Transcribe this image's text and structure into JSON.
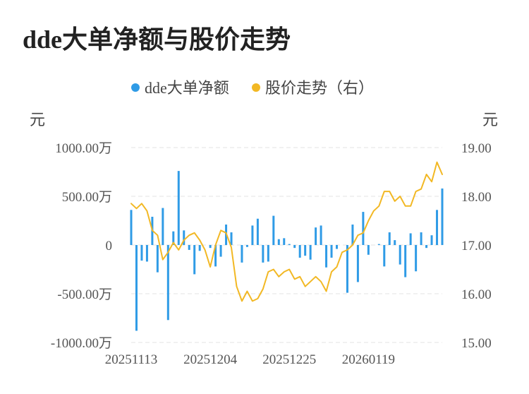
{
  "chart_data": {
    "type": "bar+line",
    "title": "dde大单净额与股价走势",
    "legend": [
      {
        "name": "dde大单净额",
        "color": "#2f9be6",
        "marker": "dot"
      },
      {
        "name": "股价走势（右）",
        "color": "#f2b824",
        "marker": "dot"
      }
    ],
    "legend_placement": "top-center",
    "y_left": {
      "unit": "元",
      "ylim": [
        -1000,
        1000
      ],
      "ticks": [
        "1000.00万",
        "500.00万",
        "0",
        "-500.00万",
        "-1000.00万"
      ],
      "tick_values": [
        1000,
        500,
        0,
        -500,
        -1000
      ]
    },
    "y_right": {
      "unit": "元",
      "ylim": [
        15,
        19
      ],
      "ticks": [
        "19.00",
        "18.00",
        "17.00",
        "16.00",
        "15.00"
      ],
      "tick_values": [
        19,
        18,
        17,
        16,
        15
      ]
    },
    "x_tick_labels": [
      "20251113",
      "20251204",
      "20251225",
      "20260119"
    ],
    "x_tick_indices": [
      0,
      15,
      30,
      45
    ],
    "grid": "horizontal-dashed",
    "series": [
      {
        "name": "dde大单净额",
        "type": "bar",
        "axis": "left",
        "color": "#2f9be6",
        "values": [
          360,
          -880,
          -160,
          -170,
          290,
          -280,
          380,
          -770,
          140,
          760,
          150,
          -50,
          -300,
          -60,
          0,
          -30,
          -220,
          -120,
          210,
          130,
          0,
          -180,
          -20,
          200,
          270,
          -180,
          -170,
          300,
          60,
          70,
          10,
          -30,
          -130,
          -110,
          -150,
          180,
          200,
          -230,
          -130,
          -40,
          0,
          -490,
          210,
          -380,
          340,
          -100,
          0,
          10,
          -220,
          130,
          50,
          -200,
          -330,
          120,
          -270,
          130,
          -30,
          100,
          360,
          580
        ]
      },
      {
        "name": "股价走势（右）",
        "type": "line",
        "axis": "right",
        "color": "#f2b824",
        "values": [
          17.85,
          17.75,
          17.85,
          17.7,
          17.3,
          17.2,
          16.7,
          16.85,
          17.05,
          16.9,
          17.1,
          17.2,
          17.25,
          17.1,
          16.9,
          16.55,
          17.0,
          17.3,
          17.25,
          16.95,
          16.15,
          15.85,
          16.05,
          15.85,
          15.9,
          16.1,
          16.45,
          16.5,
          16.35,
          16.45,
          16.5,
          16.3,
          16.35,
          16.15,
          16.25,
          16.35,
          16.25,
          16.05,
          16.45,
          16.55,
          16.85,
          16.9,
          17.0,
          17.2,
          17.25,
          17.5,
          17.7,
          17.8,
          18.1,
          18.1,
          17.9,
          18.0,
          17.8,
          17.8,
          18.1,
          18.15,
          18.45,
          18.3,
          18.7,
          18.45
        ]
      }
    ]
  }
}
